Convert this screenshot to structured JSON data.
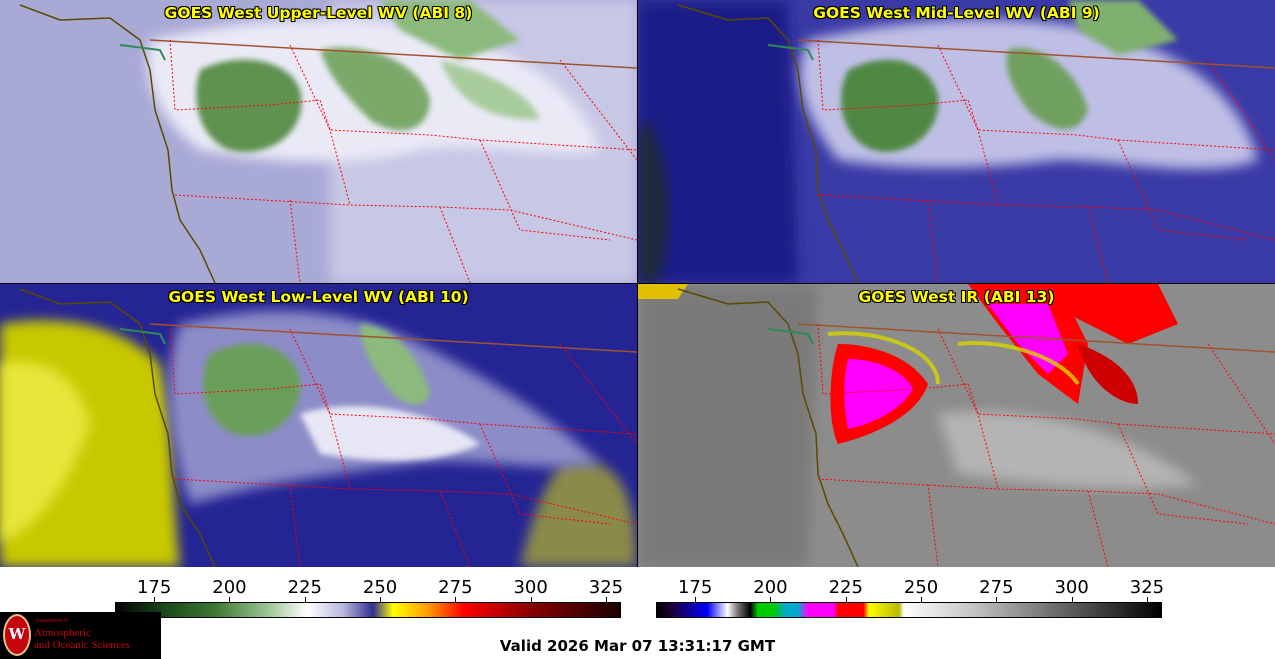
{
  "panels": [
    {
      "title": "GOES West Upper-Level WV (ABI 8)"
    },
    {
      "title": "GOES West Mid-Level WV (ABI 9)"
    },
    {
      "title": "GOES West Low-Level WV (ABI 10)"
    },
    {
      "title": "GOES West IR (ABI 13)"
    }
  ],
  "colorbar_wv": {
    "ticks": [
      "175",
      "200",
      "225",
      "250",
      "275",
      "300",
      "325"
    ],
    "range": [
      162,
      330
    ]
  },
  "colorbar_ir": {
    "ticks": [
      "175",
      "200",
      "225",
      "250",
      "275",
      "300",
      "325"
    ],
    "range": [
      162,
      330
    ]
  },
  "footer": {
    "valid_text": "Valid 2026 Mar 07 13:31:17 GMT"
  },
  "logo": {
    "dept": "Department of",
    "line1": "Atmospheric",
    "line2": "and Oceanic Sciences",
    "seal_letter": "W"
  }
}
